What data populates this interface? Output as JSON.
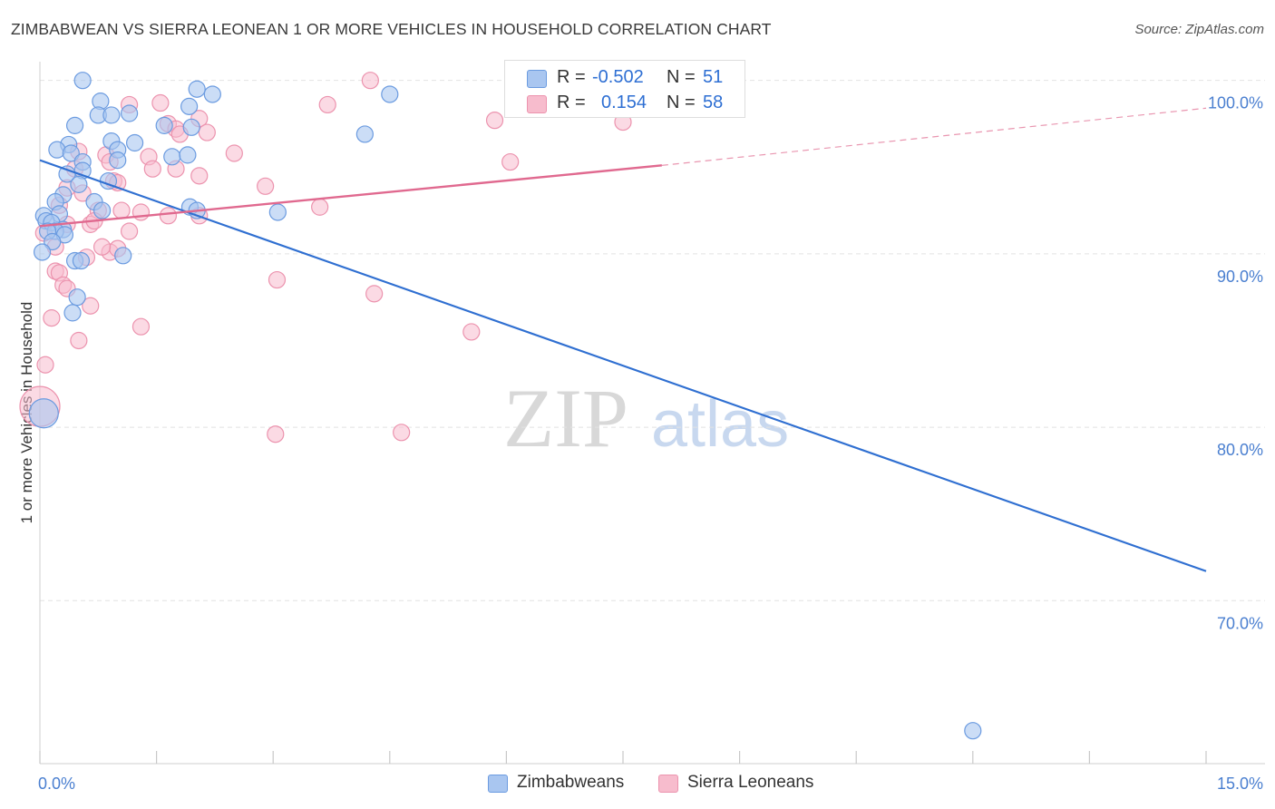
{
  "header": {
    "title": "ZIMBABWEAN VS SIERRA LEONEAN 1 OR MORE VEHICLES IN HOUSEHOLD CORRELATION CHART",
    "source": "Source: ZipAtlas.com"
  },
  "watermark": {
    "zip": "ZIP",
    "atlas": "atlas"
  },
  "legend": {
    "series1": {
      "r_label": "R =",
      "r_value": "-0.502",
      "n_label": "N =",
      "n_value": "51"
    },
    "series2": {
      "r_label": "R =",
      "r_value": "0.154",
      "n_label": "N =",
      "n_value": "58"
    }
  },
  "bottom_legend": {
    "series1": "Zimbabweans",
    "series2": "Sierra Leoneans"
  },
  "colors": {
    "blue_fill": "#a9c6f0",
    "blue_stroke": "#6b9be0",
    "blue_line": "#2f6fd1",
    "pink_fill": "#f7bccd",
    "pink_stroke": "#ec93ae",
    "pink_line": "#e0698f",
    "grid": "#e2e2e2",
    "tick_text": "#4a7fd0"
  },
  "chart_data": {
    "type": "scatter",
    "title": "ZIMBABWEAN VS SIERRA LEONEAN 1 OR MORE VEHICLES IN HOUSEHOLD CORRELATION CHART",
    "xlabel": "",
    "ylabel": "1 or more Vehicles in Household",
    "xlim": [
      0,
      15
    ],
    "ylim": [
      60.6,
      101.5
    ],
    "x_tick_labels": [
      {
        "v": 0,
        "label": "0.0%"
      },
      {
        "v": 15,
        "label": "15.0%"
      }
    ],
    "x_minor_ticks": [
      1.5,
      3,
      4.5,
      6,
      7.5,
      9,
      10.5,
      12,
      13.5
    ],
    "y_ticks": [
      {
        "v": 100,
        "label": "100.0%"
      },
      {
        "v": 90,
        "label": "90.0%"
      },
      {
        "v": 80,
        "label": "80.0%"
      },
      {
        "v": 70,
        "label": "70.0%"
      }
    ],
    "series": [
      {
        "name": "Zimbabweans",
        "color": "blue",
        "R": -0.502,
        "N": 51,
        "trend": {
          "x0": 0,
          "y0": 95.4,
          "x1": 15,
          "y1": 71.7
        },
        "points": [
          [
            0.55,
            100.0
          ],
          [
            0.78,
            98.8
          ],
          [
            0.45,
            97.4
          ],
          [
            0.75,
            98.0
          ],
          [
            0.92,
            98.0
          ],
          [
            1.15,
            98.1
          ],
          [
            2.02,
            99.5
          ],
          [
            2.22,
            99.2
          ],
          [
            4.5,
            99.2
          ],
          [
            4.18,
            96.9
          ],
          [
            0.37,
            96.3
          ],
          [
            0.22,
            96.0
          ],
          [
            0.4,
            95.8
          ],
          [
            0.92,
            96.5
          ],
          [
            1.0,
            96.0
          ],
          [
            1.22,
            96.4
          ],
          [
            1.6,
            97.4
          ],
          [
            1.7,
            95.6
          ],
          [
            1.92,
            98.5
          ],
          [
            1.9,
            95.7
          ],
          [
            1.95,
            97.3
          ],
          [
            0.55,
            95.3
          ],
          [
            1.0,
            95.4
          ],
          [
            0.55,
            94.8
          ],
          [
            0.35,
            94.6
          ],
          [
            0.5,
            94.0
          ],
          [
            0.88,
            94.2
          ],
          [
            0.3,
            93.4
          ],
          [
            0.2,
            93.0
          ],
          [
            0.7,
            93.0
          ],
          [
            0.25,
            92.3
          ],
          [
            0.05,
            92.2
          ],
          [
            0.08,
            91.9
          ],
          [
            0.15,
            91.8
          ],
          [
            0.3,
            91.4
          ],
          [
            0.2,
            91.3
          ],
          [
            0.1,
            91.3
          ],
          [
            0.32,
            91.1
          ],
          [
            0.16,
            90.7
          ],
          [
            0.03,
            90.1
          ],
          [
            0.45,
            89.6
          ],
          [
            0.53,
            89.6
          ],
          [
            1.07,
            89.9
          ],
          [
            1.93,
            92.7
          ],
          [
            2.02,
            92.5
          ],
          [
            3.06,
            92.4
          ],
          [
            0.8,
            92.5
          ],
          [
            0.48,
            87.5
          ],
          [
            0.42,
            86.6
          ],
          [
            0.05,
            80.8
          ],
          [
            12.0,
            62.5
          ]
        ]
      },
      {
        "name": "Sierra Leoneans",
        "color": "pink",
        "R": 0.154,
        "N": 58,
        "trend": {
          "x0": 0,
          "y0": 91.6,
          "x1": 8.0,
          "y1": 95.1,
          "dash_x1": 15,
          "dash_y1": 98.4
        },
        "points": [
          [
            4.25,
            100.0
          ],
          [
            1.15,
            98.6
          ],
          [
            1.55,
            98.7
          ],
          [
            1.65,
            97.5
          ],
          [
            1.75,
            97.2
          ],
          [
            1.8,
            96.9
          ],
          [
            2.05,
            97.8
          ],
          [
            2.15,
            97.0
          ],
          [
            3.7,
            98.6
          ],
          [
            5.85,
            97.7
          ],
          [
            7.5,
            97.6
          ],
          [
            0.5,
            95.9
          ],
          [
            0.85,
            95.7
          ],
          [
            0.9,
            95.3
          ],
          [
            1.4,
            95.6
          ],
          [
            2.5,
            95.8
          ],
          [
            1.45,
            94.9
          ],
          [
            1.75,
            94.9
          ],
          [
            0.45,
            94.9
          ],
          [
            0.35,
            93.8
          ],
          [
            0.55,
            93.5
          ],
          [
            0.95,
            94.2
          ],
          [
            1.0,
            94.1
          ],
          [
            2.05,
            94.5
          ],
          [
            2.9,
            93.9
          ],
          [
            6.05,
            95.3
          ],
          [
            0.25,
            92.8
          ],
          [
            0.75,
            92.5
          ],
          [
            1.05,
            92.5
          ],
          [
            1.3,
            92.4
          ],
          [
            1.65,
            92.2
          ],
          [
            2.05,
            92.2
          ],
          [
            3.6,
            92.7
          ],
          [
            0.35,
            91.7
          ],
          [
            0.65,
            91.7
          ],
          [
            0.7,
            91.9
          ],
          [
            1.15,
            91.3
          ],
          [
            0.05,
            91.2
          ],
          [
            0.2,
            90.4
          ],
          [
            0.9,
            90.1
          ],
          [
            1.0,
            90.3
          ],
          [
            0.6,
            89.8
          ],
          [
            0.8,
            90.4
          ],
          [
            0.2,
            89.0
          ],
          [
            0.25,
            88.9
          ],
          [
            0.3,
            88.2
          ],
          [
            0.35,
            88.0
          ],
          [
            3.05,
            88.5
          ],
          [
            4.3,
            87.7
          ],
          [
            0.65,
            87.0
          ],
          [
            0.15,
            86.3
          ],
          [
            1.3,
            85.8
          ],
          [
            5.55,
            85.5
          ],
          [
            0.5,
            85.0
          ],
          [
            0.07,
            83.6
          ],
          [
            3.03,
            79.6
          ],
          [
            4.65,
            79.7
          ],
          [
            0.0,
            81.2
          ]
        ]
      }
    ]
  }
}
